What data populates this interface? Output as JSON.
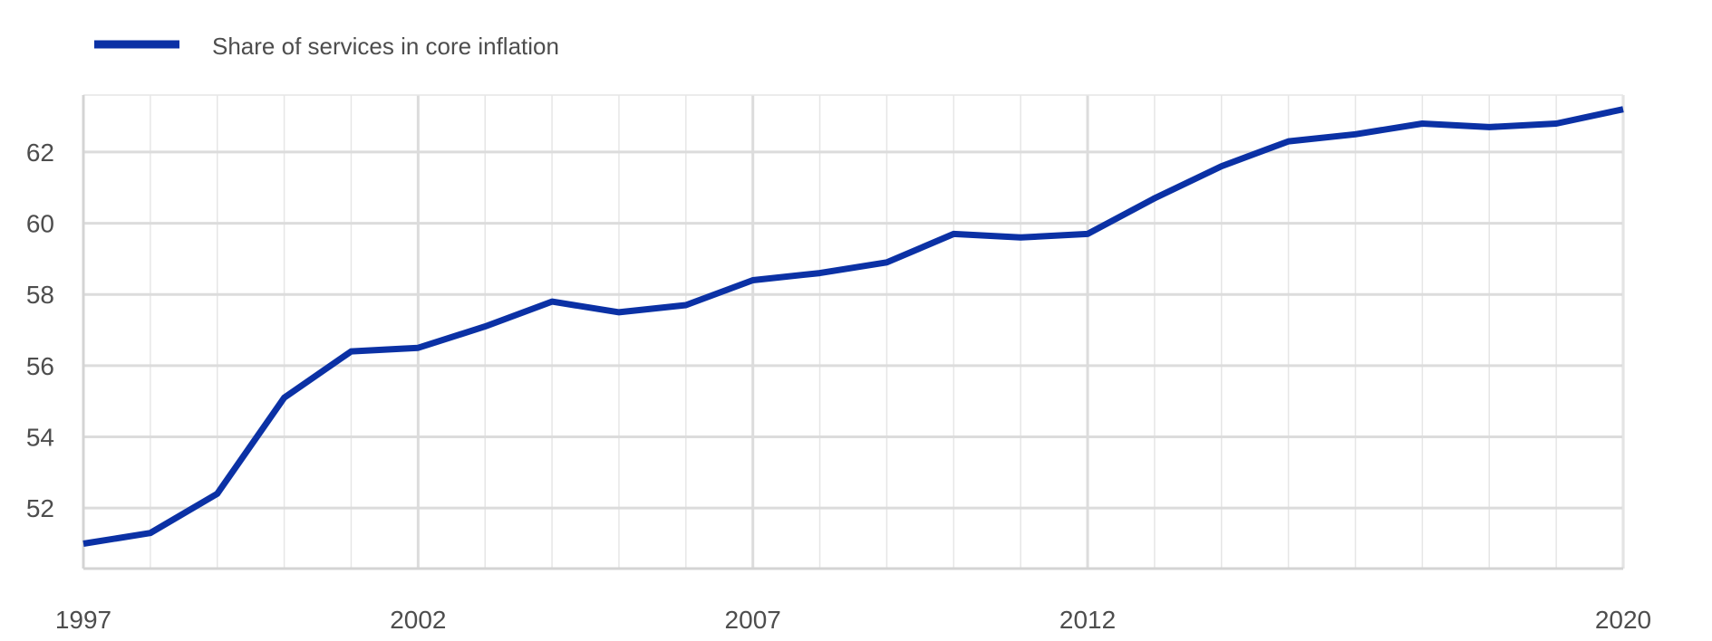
{
  "chart_data": {
    "type": "line",
    "title": "",
    "xlabel": "",
    "ylabel": "",
    "x": [
      1997,
      1998,
      1999,
      2000,
      2001,
      2002,
      2003,
      2004,
      2005,
      2006,
      2007,
      2008,
      2009,
      2010,
      2011,
      2012,
      2013,
      2014,
      2015,
      2016,
      2017,
      2018,
      2019,
      2020
    ],
    "xlim": [
      1997,
      2020
    ],
    "x_tick_labels": [
      "1997",
      "2002",
      "2007",
      "2012",
      "2020"
    ],
    "ylim": [
      50.3,
      63.6
    ],
    "y_ticks": [
      52,
      54,
      56,
      58,
      60,
      62
    ],
    "y_tick_labels": [
      "52",
      "54",
      "56",
      "58",
      "60",
      "62"
    ],
    "grid": true,
    "legend_position": "top-left",
    "series": [
      {
        "name": "Share of services in core inflation",
        "color": "#0b31a5",
        "values": [
          51.0,
          51.3,
          52.4,
          55.1,
          56.4,
          56.5,
          57.1,
          57.8,
          57.5,
          57.7,
          58.4,
          58.6,
          58.9,
          59.7,
          59.6,
          59.7,
          60.7,
          61.6,
          62.3,
          62.5,
          62.8,
          62.7,
          62.8,
          63.2
        ]
      }
    ]
  }
}
